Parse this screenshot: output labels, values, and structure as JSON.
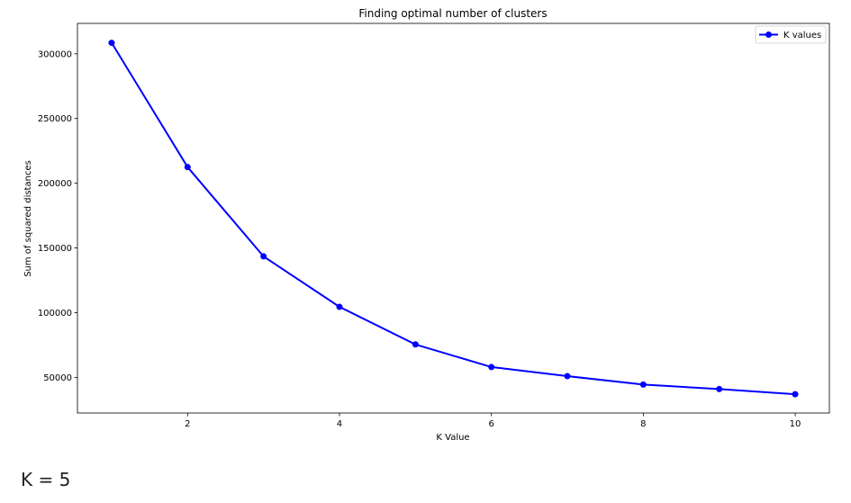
{
  "chart_data": {
    "type": "line",
    "title": "Finding optimal number of clusters",
    "xlabel": "K Value",
    "ylabel": "Sum of squared distances",
    "x": [
      1,
      2,
      3,
      4,
      5,
      6,
      7,
      8,
      9,
      10
    ],
    "series": [
      {
        "name": "K values",
        "color": "#0000ff",
        "marker": "circle",
        "values": [
          308500,
          212500,
          143500,
          104500,
          75500,
          58000,
          51000,
          44500,
          41000,
          37000
        ]
      }
    ],
    "xlim": [
      0.55,
      10.45
    ],
    "ylim": [
      22500,
      323500
    ],
    "xticks": [
      2,
      4,
      6,
      8,
      10
    ],
    "yticks": [
      50000,
      100000,
      150000,
      200000,
      250000,
      300000
    ],
    "grid": false,
    "legend_position": "top-right"
  },
  "note": "K = 5"
}
